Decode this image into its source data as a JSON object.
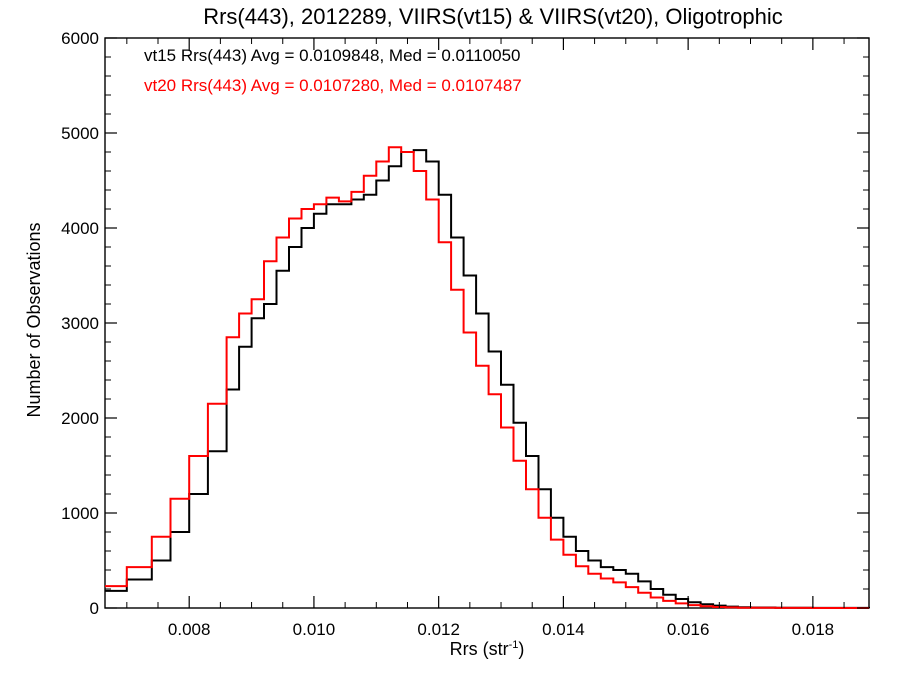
{
  "chart_data": {
    "type": "line",
    "step": true,
    "title": "Rrs(443), 2012289, VIIRS(vt15) & VIIRS(vt20), Oligotrophic",
    "xlabel_main": "Rrs (str",
    "xlabel_sup": "-1",
    "xlabel_close": ")",
    "ylabel": "Number of Observations",
    "xlim": [
      0.00665,
      0.0189
    ],
    "ylim": [
      0,
      6000
    ],
    "x_ticks": [
      0.008,
      0.01,
      0.012,
      0.014,
      0.016,
      0.018
    ],
    "x_tick_labels": [
      "0.008",
      "0.010",
      "0.012",
      "0.014",
      "0.016",
      "0.018"
    ],
    "y_ticks": [
      0,
      1000,
      2000,
      3000,
      4000,
      5000,
      6000
    ],
    "y_tick_labels": [
      "0",
      "1000",
      "2000",
      "3000",
      "4000",
      "5000",
      "6000"
    ],
    "grid": false,
    "legend_position": "top-left",
    "series": [
      {
        "name": "vt15 Rrs(443) Avg = 0.0109848, Med = 0.0110050",
        "color": "#000000",
        "points": [
          [
            0.00665,
            180
          ],
          [
            0.007,
            300
          ],
          [
            0.0074,
            500
          ],
          [
            0.0077,
            800
          ],
          [
            0.008,
            1200
          ],
          [
            0.0083,
            1650
          ],
          [
            0.0086,
            2300
          ],
          [
            0.0088,
            2750
          ],
          [
            0.009,
            3050
          ],
          [
            0.0092,
            3200
          ],
          [
            0.0094,
            3550
          ],
          [
            0.0096,
            3800
          ],
          [
            0.0098,
            4000
          ],
          [
            0.01,
            4150
          ],
          [
            0.0102,
            4250
          ],
          [
            0.0104,
            4250
          ],
          [
            0.0106,
            4300
          ],
          [
            0.0108,
            4350
          ],
          [
            0.011,
            4500
          ],
          [
            0.0112,
            4650
          ],
          [
            0.0114,
            4800
          ],
          [
            0.0116,
            4820
          ],
          [
            0.0118,
            4700
          ],
          [
            0.012,
            4350
          ],
          [
            0.0122,
            3900
          ],
          [
            0.0124,
            3500
          ],
          [
            0.0126,
            3100
          ],
          [
            0.0128,
            2700
          ],
          [
            0.013,
            2350
          ],
          [
            0.0132,
            1950
          ],
          [
            0.0134,
            1600
          ],
          [
            0.0136,
            1250
          ],
          [
            0.0138,
            950
          ],
          [
            0.014,
            750
          ],
          [
            0.0142,
            600
          ],
          [
            0.0144,
            500
          ],
          [
            0.0146,
            430
          ],
          [
            0.0148,
            400
          ],
          [
            0.015,
            360
          ],
          [
            0.0152,
            280
          ],
          [
            0.0154,
            200
          ],
          [
            0.0156,
            140
          ],
          [
            0.0158,
            95
          ],
          [
            0.016,
            60
          ],
          [
            0.0162,
            40
          ],
          [
            0.0164,
            25
          ],
          [
            0.0166,
            15
          ],
          [
            0.0168,
            8
          ],
          [
            0.017,
            5
          ],
          [
            0.0174,
            3
          ],
          [
            0.018,
            1
          ],
          [
            0.0189,
            0
          ]
        ]
      },
      {
        "name": "vt20 Rrs(443) Avg = 0.0107280, Med = 0.0107487",
        "color": "#ff0000",
        "points": [
          [
            0.00665,
            230
          ],
          [
            0.007,
            430
          ],
          [
            0.0074,
            750
          ],
          [
            0.0077,
            1150
          ],
          [
            0.008,
            1600
          ],
          [
            0.0083,
            2150
          ],
          [
            0.0086,
            2850
          ],
          [
            0.0088,
            3100
          ],
          [
            0.009,
            3250
          ],
          [
            0.0092,
            3650
          ],
          [
            0.0094,
            3900
          ],
          [
            0.0096,
            4100
          ],
          [
            0.0098,
            4200
          ],
          [
            0.01,
            4250
          ],
          [
            0.0102,
            4320
          ],
          [
            0.0104,
            4280
          ],
          [
            0.0106,
            4380
          ],
          [
            0.0108,
            4550
          ],
          [
            0.011,
            4700
          ],
          [
            0.0112,
            4850
          ],
          [
            0.0114,
            4800
          ],
          [
            0.0116,
            4600
          ],
          [
            0.0118,
            4300
          ],
          [
            0.012,
            3850
          ],
          [
            0.0122,
            3350
          ],
          [
            0.0124,
            2900
          ],
          [
            0.0126,
            2550
          ],
          [
            0.0128,
            2250
          ],
          [
            0.013,
            1900
          ],
          [
            0.0132,
            1550
          ],
          [
            0.0134,
            1250
          ],
          [
            0.0136,
            950
          ],
          [
            0.0138,
            720
          ],
          [
            0.014,
            560
          ],
          [
            0.0142,
            440
          ],
          [
            0.0144,
            360
          ],
          [
            0.0146,
            310
          ],
          [
            0.0148,
            270
          ],
          [
            0.015,
            220
          ],
          [
            0.0152,
            160
          ],
          [
            0.0154,
            110
          ],
          [
            0.0156,
            75
          ],
          [
            0.0158,
            48
          ],
          [
            0.016,
            30
          ],
          [
            0.0162,
            18
          ],
          [
            0.0164,
            10
          ],
          [
            0.0166,
            6
          ],
          [
            0.0168,
            3
          ],
          [
            0.017,
            2
          ],
          [
            0.0174,
            1
          ],
          [
            0.018,
            0
          ],
          [
            0.0189,
            0
          ]
        ]
      }
    ]
  }
}
